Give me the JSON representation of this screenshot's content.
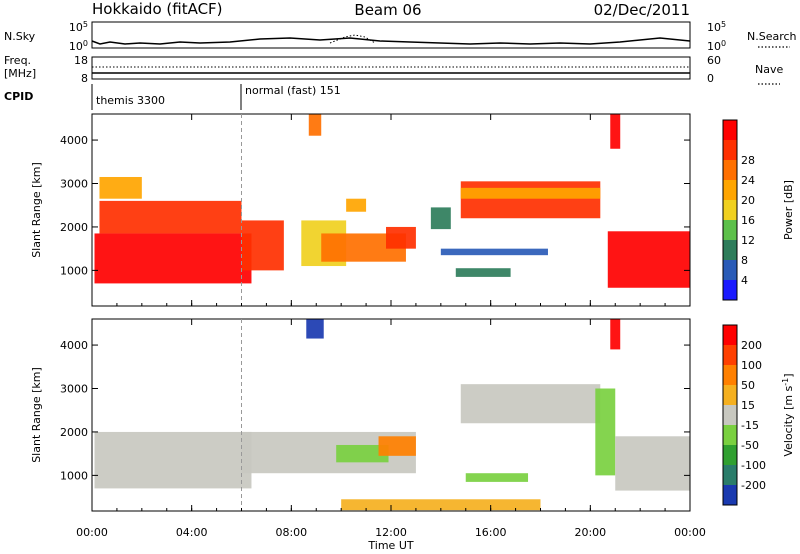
{
  "header": {
    "station": "Hokkaido (fitACF)",
    "beam": "Beam 06",
    "date": "02/Dec/2011"
  },
  "params": {
    "nsky_label": "N.Sky",
    "nsky_ticks": [
      "10^5",
      "10^0"
    ],
    "nsearch_label": "N.Search",
    "freq_label": "Freq.",
    "freq_unit": "[MHz]",
    "freq_ticks": [
      "18",
      "8"
    ],
    "nave_label": "Nave",
    "nave_ticks": [
      "60",
      "0"
    ],
    "cpid_label": "CPID",
    "modes": [
      {
        "label": "themis 3300",
        "start_hour": 0
      },
      {
        "label": "normal (fast) 151",
        "start_hour": 6
      }
    ]
  },
  "chart_data": [
    {
      "type": "heatmap",
      "title": "",
      "ylabel": "Slant Range [km]",
      "xlabel": "",
      "x_ticks": [
        "00:00",
        "04:00",
        "08:00",
        "12:00",
        "16:00",
        "20:00",
        "00:00"
      ],
      "x_range_hours": [
        0,
        24
      ],
      "y_ticks": [
        1000,
        2000,
        3000,
        4000
      ],
      "ylim": [
        180,
        4600
      ],
      "colorbar": {
        "label": "Power [dB]",
        "tick_labels": [
          "4",
          "8",
          "12",
          "16",
          "20",
          "24",
          "28"
        ],
        "colors": [
          "#1a1aff",
          "#2a5bb7",
          "#2e7d5b",
          "#5cc04a",
          "#f0d020",
          "#ffa500",
          "#ff7000",
          "#ff3000",
          "#ff0000"
        ]
      },
      "regions": [
        {
          "t0": 0.1,
          "t1": 6.4,
          "r0": 700,
          "r1": 1850,
          "level": 8
        },
        {
          "t0": 0.3,
          "t1": 6.0,
          "r0": 1850,
          "r1": 2600,
          "level": 7
        },
        {
          "t0": 6.0,
          "t1": 7.7,
          "r0": 1000,
          "r1": 2150,
          "level": 7
        },
        {
          "t0": 8.4,
          "t1": 10.2,
          "r0": 1100,
          "r1": 2150,
          "level": 4
        },
        {
          "t0": 9.2,
          "t1": 12.6,
          "r0": 1200,
          "r1": 1850,
          "level": 6
        },
        {
          "t0": 11.8,
          "t1": 13.0,
          "r0": 1500,
          "r1": 2000,
          "level": 7
        },
        {
          "t0": 10.2,
          "t1": 11.0,
          "r0": 2350,
          "r1": 2650,
          "level": 5
        },
        {
          "t0": 13.6,
          "t1": 14.4,
          "r0": 1950,
          "r1": 2450,
          "level": 2
        },
        {
          "t0": 14.8,
          "t1": 20.4,
          "r0": 2200,
          "r1": 3050,
          "level": 7
        },
        {
          "t0": 14.8,
          "t1": 20.4,
          "r0": 2650,
          "r1": 2900,
          "level": 5
        },
        {
          "t0": 20.7,
          "t1": 24.0,
          "r0": 600,
          "r1": 1900,
          "level": 8
        },
        {
          "t0": 20.8,
          "t1": 21.2,
          "r0": 3800,
          "r1": 4600,
          "level": 8
        },
        {
          "t0": 8.7,
          "t1": 9.2,
          "r0": 4100,
          "r1": 4600,
          "level": 6
        },
        {
          "t0": 14.0,
          "t1": 18.3,
          "r0": 1350,
          "r1": 1500,
          "level": 1
        },
        {
          "t0": 14.6,
          "t1": 16.8,
          "r0": 850,
          "r1": 1050,
          "level": 2
        },
        {
          "t0": 0.3,
          "t1": 2.0,
          "r0": 2650,
          "r1": 3150,
          "level": 5
        }
      ]
    },
    {
      "type": "heatmap",
      "title": "",
      "ylabel": "Slant Range [km]",
      "xlabel": "Time UT",
      "x_ticks": [
        "00:00",
        "04:00",
        "08:00",
        "12:00",
        "16:00",
        "20:00",
        "00:00"
      ],
      "x_range_hours": [
        0,
        24
      ],
      "y_ticks": [
        1000,
        2000,
        3000,
        4000
      ],
      "ylim": [
        180,
        4600
      ],
      "colorbar": {
        "label": "Velocity [m s^-1]",
        "tick_labels": [
          "200",
          "100",
          "50",
          "15",
          "-15",
          "-50",
          "-100",
          "-200"
        ],
        "colors": [
          "#1a3ab0",
          "#2a7d6a",
          "#30a030",
          "#7ad040",
          "#c8c8c0",
          "#f5b020",
          "#ff8000",
          "#ff4000",
          "#ff0000"
        ]
      },
      "regions": [
        {
          "t0": 0.1,
          "t1": 6.4,
          "r0": 700,
          "r1": 2000,
          "level": 4
        },
        {
          "t0": 6.0,
          "t1": 13.0,
          "r0": 1050,
          "r1": 2000,
          "level": 4
        },
        {
          "t0": 9.8,
          "t1": 11.9,
          "r0": 1300,
          "r1": 1700,
          "level": 3
        },
        {
          "t0": 11.5,
          "t1": 13.0,
          "r0": 1450,
          "r1": 1900,
          "level": 6
        },
        {
          "t0": 14.8,
          "t1": 20.4,
          "r0": 2200,
          "r1": 3100,
          "level": 4
        },
        {
          "t0": 20.2,
          "t1": 21.0,
          "r0": 1000,
          "r1": 3000,
          "level": 3
        },
        {
          "t0": 21.0,
          "t1": 24.0,
          "r0": 650,
          "r1": 1900,
          "level": 4
        },
        {
          "t0": 20.8,
          "t1": 21.2,
          "r0": 3900,
          "r1": 4600,
          "level": 8
        },
        {
          "t0": 8.6,
          "t1": 9.3,
          "r0": 4150,
          "r1": 4600,
          "level": 0
        },
        {
          "t0": 10.0,
          "t1": 18.0,
          "r0": 200,
          "r1": 450,
          "level": 5
        },
        {
          "t0": 15.0,
          "t1": 17.5,
          "r0": 850,
          "r1": 1050,
          "level": 3
        }
      ]
    }
  ]
}
